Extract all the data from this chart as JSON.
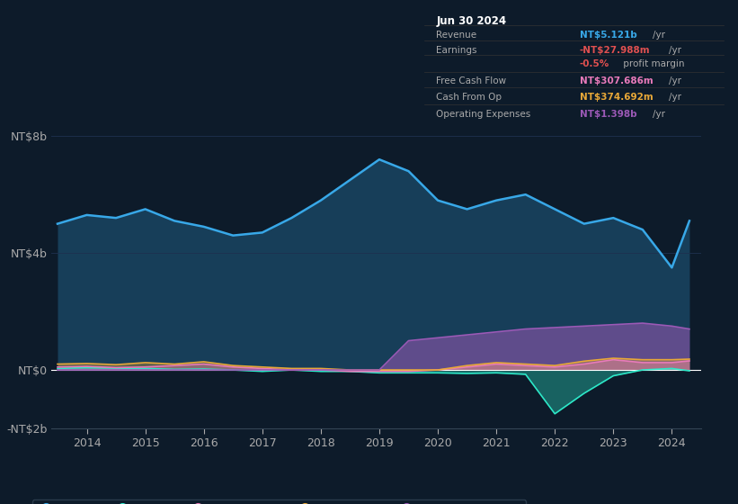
{
  "bg_color": "#0d1b2a",
  "plot_bg_color": "#0d1b2a",
  "title_box": {
    "date": "Jun 30 2024",
    "rows": [
      {
        "label": "Revenue",
        "value": "NT$5.121b",
        "unit": "/yr",
        "value_color": "#38a8e8",
        "label_color": "#aaaaaa"
      },
      {
        "label": "Earnings",
        "value": "-NT$27.988m",
        "unit": "/yr",
        "value_color": "#e05050",
        "label_color": "#aaaaaa"
      },
      {
        "label": "",
        "value": "-0.5%",
        "unit": " profit margin",
        "value_color": "#e05050",
        "label_color": "#aaaaaa"
      },
      {
        "label": "Free Cash Flow",
        "value": "NT$307.686m",
        "unit": "/yr",
        "value_color": "#e87aba",
        "label_color": "#aaaaaa"
      },
      {
        "label": "Cash From Op",
        "value": "NT$374.692m",
        "unit": "/yr",
        "value_color": "#e8a838",
        "label_color": "#aaaaaa"
      },
      {
        "label": "Operating Expenses",
        "value": "NT$1.398b",
        "unit": "/yr",
        "value_color": "#9b59b6",
        "label_color": "#aaaaaa"
      }
    ]
  },
  "years": [
    2013.5,
    2014,
    2014.5,
    2015,
    2015.5,
    2016,
    2016.5,
    2017,
    2017.5,
    2018,
    2018.5,
    2019,
    2019.5,
    2020,
    2020.5,
    2021,
    2021.5,
    2022,
    2022.5,
    2023,
    2023.5,
    2024,
    2024.3
  ],
  "revenue": [
    5.0,
    5.3,
    5.2,
    5.5,
    5.1,
    4.9,
    4.6,
    4.7,
    5.2,
    5.8,
    6.5,
    7.2,
    6.8,
    5.8,
    5.5,
    5.8,
    6.0,
    5.5,
    5.0,
    5.2,
    4.8,
    3.5,
    5.1
  ],
  "earnings": [
    0.05,
    0.08,
    0.06,
    0.05,
    0.02,
    0.03,
    0.0,
    -0.05,
    0.0,
    -0.05,
    -0.05,
    -0.1,
    -0.1,
    -0.1,
    -0.12,
    -0.1,
    -0.15,
    -1.5,
    -0.8,
    -0.2,
    0.0,
    0.05,
    -0.03
  ],
  "fcf": [
    0.1,
    0.12,
    0.08,
    0.1,
    0.15,
    0.2,
    0.1,
    0.05,
    0.0,
    0.0,
    -0.05,
    -0.05,
    -0.05,
    0.0,
    0.1,
    0.2,
    0.15,
    0.1,
    0.2,
    0.35,
    0.25,
    0.25,
    0.31
  ],
  "cashfromop": [
    0.2,
    0.22,
    0.18,
    0.25,
    0.2,
    0.28,
    0.15,
    0.1,
    0.05,
    0.05,
    0.0,
    0.0,
    0.0,
    0.0,
    0.15,
    0.25,
    0.2,
    0.15,
    0.3,
    0.4,
    0.35,
    0.35,
    0.37
  ],
  "opex": [
    0.0,
    0.0,
    0.0,
    0.0,
    0.0,
    0.0,
    0.0,
    0.0,
    0.0,
    0.0,
    0.0,
    0.0,
    1.0,
    1.1,
    1.2,
    1.3,
    1.4,
    1.45,
    1.5,
    1.55,
    1.6,
    1.5,
    1.4
  ],
  "revenue_color": "#38a8e8",
  "earnings_color": "#2de8c8",
  "fcf_color": "#e87aba",
  "cashfromop_color": "#e8a838",
  "opex_color": "#9b59b6",
  "ylim": [
    -2,
    8
  ],
  "yticks": [
    -2,
    0,
    4,
    8
  ],
  "ytick_labels": [
    "-NT$2b",
    "NT$0",
    "NT$4b",
    "NT$8b"
  ],
  "xticks": [
    2014,
    2015,
    2016,
    2017,
    2018,
    2019,
    2020,
    2021,
    2022,
    2023,
    2024
  ],
  "grid_color": "#1e3050",
  "zero_line_color": "#ffffff",
  "legend_items": [
    {
      "label": "Revenue",
      "color": "#38a8e8"
    },
    {
      "label": "Earnings",
      "color": "#2de8c8"
    },
    {
      "label": "Free Cash Flow",
      "color": "#e87aba"
    },
    {
      "label": "Cash From Op",
      "color": "#e8a838"
    },
    {
      "label": "Operating Expenses",
      "color": "#9b59b6"
    }
  ]
}
